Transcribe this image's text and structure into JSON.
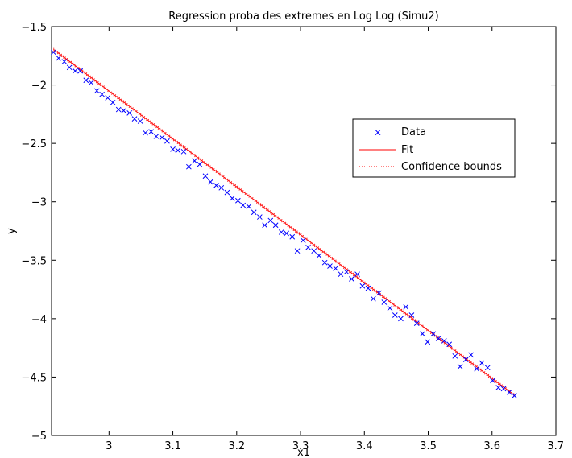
{
  "chart_data": {
    "type": "scatter",
    "title": "Regression proba des extremes en Log Log (Simu2)",
    "xlabel": "x1",
    "ylabel": "y",
    "xlim": [
      2.91,
      3.7
    ],
    "ylim": [
      -5,
      -1.5
    ],
    "xticks": [
      3,
      3.1,
      3.2,
      3.3,
      3.4,
      3.5,
      3.6,
      3.7
    ],
    "xtick_labels": [
      "3",
      "3.1",
      "3.2",
      "3.3",
      "3.4",
      "3.5",
      "3.6",
      "3.7"
    ],
    "yticks": [
      -5,
      -4.5,
      -4,
      -3.5,
      -3,
      -2.5,
      -2,
      -1.5
    ],
    "ytick_labels": [
      "−5",
      "−4.5",
      "−4",
      "−3.5",
      "−3",
      "−2.5",
      "−2",
      "−1.5"
    ],
    "grid": false,
    "legend_position": "upper-right",
    "legend": [
      "Data",
      "Fit",
      "Confidence bounds"
    ],
    "colors": {
      "data": "#0000ff",
      "fit": "#ff0000",
      "bounds": "#ff0000"
    },
    "series": [
      {
        "name": "Data",
        "kind": "scatter",
        "marker": "x",
        "x": [
          2.913,
          2.921,
          2.93,
          2.938,
          2.947,
          2.955,
          2.964,
          2.972,
          2.981,
          2.989,
          2.998,
          3.006,
          3.015,
          3.023,
          3.032,
          3.04,
          3.049,
          3.057,
          3.066,
          3.074,
          3.083,
          3.091,
          3.1,
          3.108,
          3.117,
          3.125,
          3.134,
          3.142,
          3.151,
          3.159,
          3.168,
          3.176,
          3.185,
          3.193,
          3.202,
          3.21,
          3.219,
          3.227,
          3.236,
          3.244,
          3.253,
          3.261,
          3.27,
          3.278,
          3.287,
          3.295,
          3.304,
          3.312,
          3.321,
          3.329,
          3.338,
          3.346,
          3.355,
          3.363,
          3.372,
          3.38,
          3.389,
          3.397,
          3.406,
          3.414,
          3.423,
          3.431,
          3.44,
          3.448,
          3.457,
          3.465,
          3.474,
          3.482,
          3.491,
          3.499,
          3.508,
          3.516,
          3.525,
          3.533,
          3.542,
          3.55,
          3.559,
          3.567,
          3.576,
          3.584,
          3.593,
          3.601,
          3.61,
          3.618,
          3.627,
          3.635
        ],
        "y": [
          -1.72,
          -1.77,
          -1.8,
          -1.85,
          -1.88,
          -1.88,
          -1.96,
          -1.98,
          -2.05,
          -2.08,
          -2.11,
          -2.15,
          -2.21,
          -2.22,
          -2.24,
          -2.29,
          -2.31,
          -2.41,
          -2.4,
          -2.44,
          -2.45,
          -2.48,
          -2.55,
          -2.56,
          -2.57,
          -2.7,
          -2.65,
          -2.68,
          -2.78,
          -2.83,
          -2.86,
          -2.88,
          -2.92,
          -2.97,
          -2.99,
          -3.03,
          -3.04,
          -3.09,
          -3.13,
          -3.2,
          -3.16,
          -3.2,
          -3.26,
          -3.27,
          -3.3,
          -3.42,
          -3.33,
          -3.39,
          -3.42,
          -3.46,
          -3.52,
          -3.55,
          -3.57,
          -3.62,
          -3.6,
          -3.66,
          -3.62,
          -3.72,
          -3.74,
          -3.83,
          -3.78,
          -3.86,
          -3.91,
          -3.97,
          -4.0,
          -3.9,
          -3.97,
          -4.04,
          -4.13,
          -4.2,
          -4.13,
          -4.17,
          -4.19,
          -4.22,
          -4.32,
          -4.41,
          -4.35,
          -4.31,
          -4.43,
          -4.38,
          -4.42,
          -4.53,
          -4.59,
          -4.6,
          -4.63,
          -4.66
        ]
      },
      {
        "name": "Fit",
        "kind": "line",
        "x": [
          2.913,
          3.635
        ],
        "y": [
          -1.695,
          -4.655
        ]
      },
      {
        "name": "Confidence bounds",
        "kind": "dotted-band",
        "x": [
          2.913,
          3.635
        ],
        "y_upper": [
          -1.685,
          -4.645
        ],
        "y_lower": [
          -1.705,
          -4.665
        ]
      }
    ]
  }
}
